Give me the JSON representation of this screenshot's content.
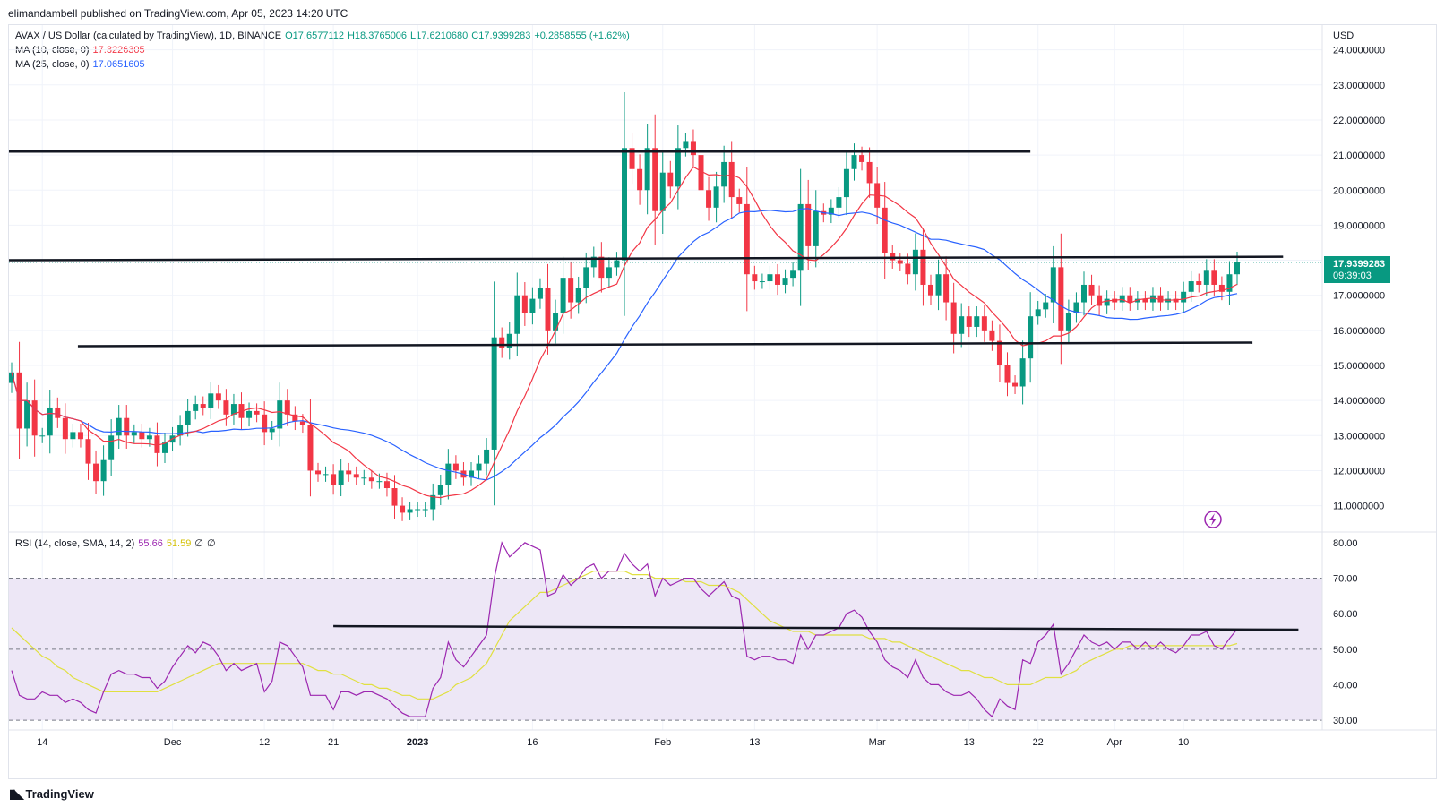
{
  "header": {
    "publisher": "elimandambell published on TradingView.com, Apr 05, 2023 14:20 UTC"
  },
  "legend": {
    "symbol": "AVAX / US Dollar (calculated by TradingView), 1D, BINANCE",
    "open": "O17.6577112",
    "high": "H18.3765006",
    "low": "L17.6210680",
    "close": "C17.9399283",
    "change": "+0.2858555 (+1.62%)",
    "ma10_label": "MA (10, close, 0)",
    "ma10_value": "17.3226305",
    "ma25_label": "MA (25, close, 0)",
    "ma25_value": "17.0651605",
    "rsi_label": "RSI (14, close, SMA, 14, 2)",
    "rsi_value": "55.66",
    "rsi_sma_value": "51.59",
    "rsi_extra1": "∅",
    "rsi_extra2": "∅"
  },
  "price_axis": {
    "currency": "USD",
    "current_price": "17.9399283",
    "countdown": "09:39:03"
  },
  "footer": {
    "brand": "TradingView"
  },
  "colors": {
    "up": "#089981",
    "down": "#f23645",
    "ma10": "#f23645",
    "ma25": "#2962ff",
    "rsi": "#9c27b0",
    "rsi_sma": "#e0e040",
    "rsi_band": "#ede7f6",
    "sr_line": "#131722"
  },
  "chart_data": [
    {
      "type": "candlestick",
      "title": "AVAX / US Dollar, 1D, BINANCE",
      "ylabel": "USD",
      "ylim": [
        10.3,
        24.4
      ],
      "x_ticks": [
        {
          "i": 4,
          "label": "14"
        },
        {
          "i": 21,
          "label": "Dec"
        },
        {
          "i": 33,
          "label": "12"
        },
        {
          "i": 42,
          "label": "21"
        },
        {
          "i": 53,
          "label": "2023"
        },
        {
          "i": 68,
          "label": "16"
        },
        {
          "i": 85,
          "label": "Feb"
        },
        {
          "i": 97,
          "label": "13"
        },
        {
          "i": 113,
          "label": "Mar"
        },
        {
          "i": 125,
          "label": "13"
        },
        {
          "i": 134,
          "label": "22"
        },
        {
          "i": 144,
          "label": "Apr"
        },
        {
          "i": 153,
          "label": "10"
        }
      ],
      "y_ticks": [
        "11.0000000",
        "12.0000000",
        "13.0000000",
        "14.0000000",
        "15.0000000",
        "16.0000000",
        "17.0000000",
        "18.0000000",
        "19.0000000",
        "20.0000000",
        "21.0000000",
        "22.0000000",
        "23.0000000",
        "24.0000000"
      ],
      "y_tick_values": [
        11,
        12,
        13,
        14,
        15,
        16,
        17,
        18,
        19,
        20,
        21,
        22,
        23,
        24
      ],
      "closes": [
        14.8,
        13.2,
        14.0,
        13.0,
        13.0,
        13.8,
        13.5,
        12.9,
        13.1,
        12.9,
        12.2,
        11.7,
        12.3,
        13.0,
        13.5,
        13.0,
        13.1,
        12.9,
        13.0,
        12.5,
        12.8,
        13.0,
        13.3,
        13.7,
        13.9,
        13.8,
        14.2,
        14.0,
        13.6,
        13.9,
        13.5,
        13.7,
        13.6,
        13.1,
        13.2,
        14.0,
        13.6,
        13.4,
        13.3,
        12.0,
        11.9,
        11.9,
        11.6,
        12.0,
        11.9,
        11.8,
        11.8,
        11.7,
        11.7,
        11.5,
        11.0,
        10.8,
        10.9,
        10.9,
        10.9,
        11.3,
        11.6,
        12.2,
        12.0,
        11.8,
        12.0,
        12.2,
        12.6,
        15.8,
        15.5,
        15.9,
        17.0,
        16.5,
        16.9,
        17.2,
        16.0,
        16.5,
        17.5,
        16.8,
        17.2,
        17.8,
        18.1,
        17.5,
        17.8,
        18.0,
        21.2,
        20.6,
        20.0,
        21.2,
        19.4,
        20.5,
        20.1,
        21.2,
        21.4,
        21.0,
        20.0,
        19.5,
        20.1,
        20.8,
        19.8,
        19.6,
        17.6,
        17.4,
        17.4,
        17.6,
        17.3,
        17.5,
        17.7,
        19.6,
        18.4,
        19.4,
        19.3,
        19.5,
        19.8,
        20.6,
        21.0,
        20.8,
        20.2,
        19.5,
        18.2,
        18.0,
        17.9,
        17.6,
        18.3,
        17.3,
        17.0,
        17.6,
        16.8,
        15.9,
        16.4,
        16.1,
        16.4,
        16.0,
        15.7,
        15.0,
        14.5,
        14.4,
        15.2,
        16.4,
        16.6,
        16.8,
        17.8,
        16.0,
        16.5,
        16.8,
        17.3,
        17.0,
        16.7,
        16.9,
        16.8,
        17.0,
        16.8,
        16.9,
        16.8,
        17.0,
        16.8,
        16.9,
        16.8,
        17.1,
        17.4,
        17.3,
        17.7,
        17.3,
        17.1,
        17.6,
        17.94
      ]
    },
    {
      "type": "line",
      "title": "RSI (14, close, SMA, 14, 2)",
      "ylim": [
        28,
        82
      ],
      "y_ticks": [
        "30.00",
        "40.00",
        "50.00",
        "60.00",
        "70.00",
        "80.00"
      ],
      "y_tick_values": [
        30,
        40,
        50,
        60,
        70,
        80
      ],
      "band": [
        30,
        70
      ],
      "midline": 50,
      "rsi": [
        44,
        37,
        36,
        36,
        38,
        37,
        37,
        35,
        36,
        35,
        33,
        32,
        38,
        43,
        44,
        43,
        43,
        42,
        42,
        39,
        41,
        45,
        48,
        51,
        49,
        52,
        51,
        48,
        44,
        46,
        44,
        45,
        46,
        38,
        41,
        52,
        51,
        48,
        45,
        37,
        37,
        37,
        33,
        38,
        38,
        37,
        38,
        38,
        37,
        36,
        34,
        32,
        31,
        31,
        31,
        39,
        42,
        52,
        47,
        45,
        48,
        51,
        54,
        70,
        80,
        76,
        78,
        80,
        79,
        78,
        65,
        66,
        71,
        68,
        70,
        73,
        74,
        70,
        72,
        72,
        77,
        74,
        72,
        74,
        65,
        70,
        68,
        69,
        70,
        70,
        67,
        65,
        67,
        69,
        65,
        64,
        48,
        47,
        48,
        48,
        47,
        47,
        46,
        54,
        50,
        54,
        54,
        55,
        56,
        60,
        61,
        59,
        55,
        52,
        47,
        45,
        44,
        42,
        47,
        42,
        40,
        40,
        38,
        37,
        37,
        38,
        36,
        33,
        31,
        36,
        34,
        33,
        47,
        46,
        52,
        54,
        57,
        43,
        46,
        50,
        54,
        52,
        51,
        52,
        50,
        52,
        52,
        50,
        52,
        50,
        52,
        50,
        49,
        51,
        54,
        54,
        55,
        51,
        50,
        53,
        55.66
      ],
      "rsi_sma": [
        56,
        54,
        52,
        50,
        48,
        47,
        45,
        44,
        42,
        41,
        40,
        39,
        38,
        38,
        38,
        38,
        38,
        38,
        38,
        38,
        39,
        40,
        41,
        42,
        43,
        44,
        45,
        46,
        46,
        46,
        46,
        46,
        46,
        46,
        46,
        46,
        46,
        46,
        46,
        45,
        44,
        44,
        43,
        43,
        42,
        41,
        40,
        40,
        39,
        39,
        38,
        37,
        37,
        36,
        36,
        36,
        37,
        38,
        40,
        41,
        42,
        44,
        46,
        50,
        54,
        58,
        60,
        62,
        64,
        66,
        66,
        67,
        68,
        69,
        70,
        71,
        72,
        72,
        72,
        72,
        72,
        71,
        71,
        71,
        70,
        70,
        70,
        70,
        69,
        69,
        69,
        68,
        68,
        68,
        67,
        66,
        64,
        62,
        60,
        58,
        57,
        56,
        55,
        55,
        55,
        54,
        54,
        54,
        54,
        54,
        54,
        54,
        53,
        53,
        53,
        52,
        52,
        51,
        50,
        49,
        48,
        47,
        46,
        45,
        44,
        44,
        43,
        42,
        42,
        41,
        40,
        40,
        40,
        40,
        41,
        42,
        42,
        42,
        43,
        44,
        46,
        47,
        48,
        49,
        50,
        50,
        51,
        51,
        51,
        51,
        51,
        51,
        51,
        51,
        51,
        51,
        51,
        51,
        51,
        51,
        51.59
      ]
    }
  ]
}
